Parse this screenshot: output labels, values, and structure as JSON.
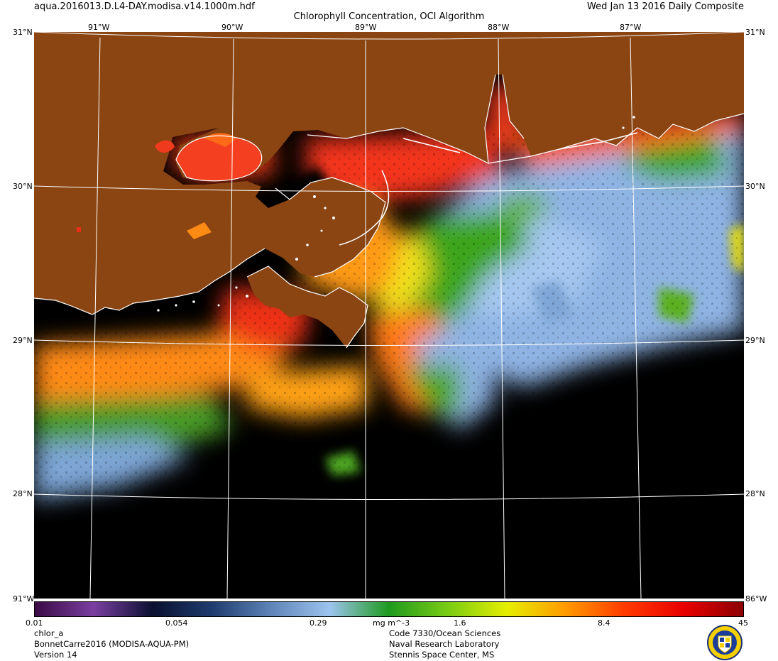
{
  "header": {
    "filename": "aqua.2016013.D.L4-DAY.modisa.v14.1000m.hdf",
    "title": "Chlorophyll Concentration, OCI Algorithm",
    "date": "Wed Jan 13 2016 Daily Composite"
  },
  "map": {
    "lon_labels": [
      "91°W",
      "90°W",
      "89°W",
      "88°W",
      "87°W"
    ],
    "lat_labels": [
      "31°N",
      "30°N",
      "29°N",
      "28°N"
    ],
    "corner_top_left": "31°N",
    "corner_top_right": "31°N",
    "corner_bottom_left": "91°W",
    "corner_bottom_right": "86°W",
    "colors": {
      "land": "#8B4513",
      "no_data": "#000000",
      "coastline": "#ffffff",
      "grid": "#ffffff"
    }
  },
  "colorbar": {
    "ticks": [
      "0.01",
      "0.054",
      "0.29",
      "1.6",
      "8.4",
      "45"
    ],
    "units": "mg m^-3",
    "stops": [
      "#3b0a45",
      "#7a3fa0",
      "#0a1030",
      "#1e3c6e",
      "#5f84b8",
      "#9cc4ee",
      "#1e9a1e",
      "#7acc14",
      "#e6ee00",
      "#ff9a00",
      "#ff3a00",
      "#e80000",
      "#8b0000"
    ]
  },
  "footer": {
    "left": [
      "chlor_a",
      "BonnetCarre2016 (MODISA-AQUA-PM)",
      "Version 14"
    ],
    "center": [
      "Code 7330/Ocean Sciences",
      "Naval Research Laboratory",
      "Stennis Space Center, MS"
    ]
  }
}
